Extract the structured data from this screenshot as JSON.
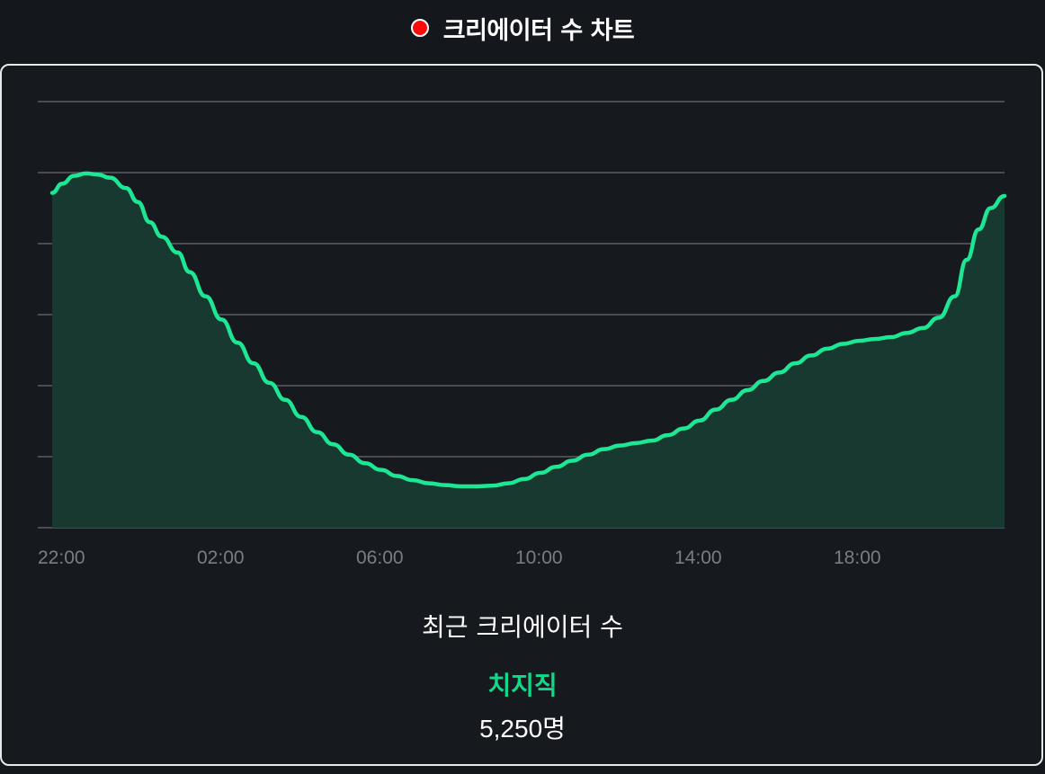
{
  "header": {
    "title": "크리에이터 수 차트"
  },
  "colors": {
    "live_dot": "#ff0a0a",
    "line": "#1de694",
    "area": "#17392f",
    "grid": "#5b5e63",
    "accent_text": "#10d98a"
  },
  "chart_data": {
    "type": "area",
    "x_tick_labels": [
      "22:00",
      "02:00",
      "06:00",
      "10:00",
      "14:00",
      "18:00"
    ],
    "x_ticks_hours": [
      0,
      4,
      8,
      12,
      16,
      20
    ],
    "xlim_hours": [
      0.35,
      24.25
    ],
    "y_gridlines": 7,
    "grid": true,
    "y_tick_labels_visible": false,
    "series": [
      {
        "x_hours": [
          0.35,
          0.6,
          0.9,
          1.2,
          1.5,
          1.8,
          2.2,
          2.5,
          2.8,
          3.1,
          3.5,
          3.8,
          4.2,
          4.6,
          5.0,
          5.4,
          5.8,
          6.2,
          6.6,
          7.0,
          7.4,
          7.8,
          8.2,
          8.6,
          9.0,
          9.4,
          9.8,
          10.2,
          10.6,
          11.0,
          11.4,
          11.8,
          12.2,
          12.6,
          13.0,
          13.4,
          13.8,
          14.2,
          14.6,
          15.0,
          15.4,
          15.8,
          16.2,
          16.6,
          17.0,
          17.4,
          17.8,
          18.2,
          18.6,
          19.0,
          19.4,
          19.8,
          20.2,
          20.6,
          21.0,
          21.4,
          21.8,
          22.2,
          22.6,
          23.0,
          23.3,
          23.6,
          23.9,
          24.25
        ],
        "values": [
          5.5,
          5.65,
          5.78,
          5.82,
          5.8,
          5.75,
          5.58,
          5.35,
          5.02,
          4.78,
          4.52,
          4.2,
          3.8,
          3.42,
          3.04,
          2.7,
          2.38,
          2.1,
          1.82,
          1.57,
          1.37,
          1.2,
          1.06,
          0.95,
          0.85,
          0.78,
          0.73,
          0.7,
          0.68,
          0.68,
          0.69,
          0.73,
          0.8,
          0.9,
          1.0,
          1.1,
          1.2,
          1.29,
          1.35,
          1.39,
          1.43,
          1.52,
          1.63,
          1.76,
          1.94,
          2.1,
          2.26,
          2.41,
          2.55,
          2.7,
          2.83,
          2.94,
          3.02,
          3.07,
          3.1,
          3.13,
          3.2,
          3.28,
          3.45,
          3.8,
          4.4,
          4.9,
          5.25,
          5.45
        ]
      }
    ],
    "ylim": [
      0,
      7
    ]
  },
  "summary": {
    "label": "최근 크리에이터 수",
    "channel": "치지직",
    "count": "5,250명"
  }
}
